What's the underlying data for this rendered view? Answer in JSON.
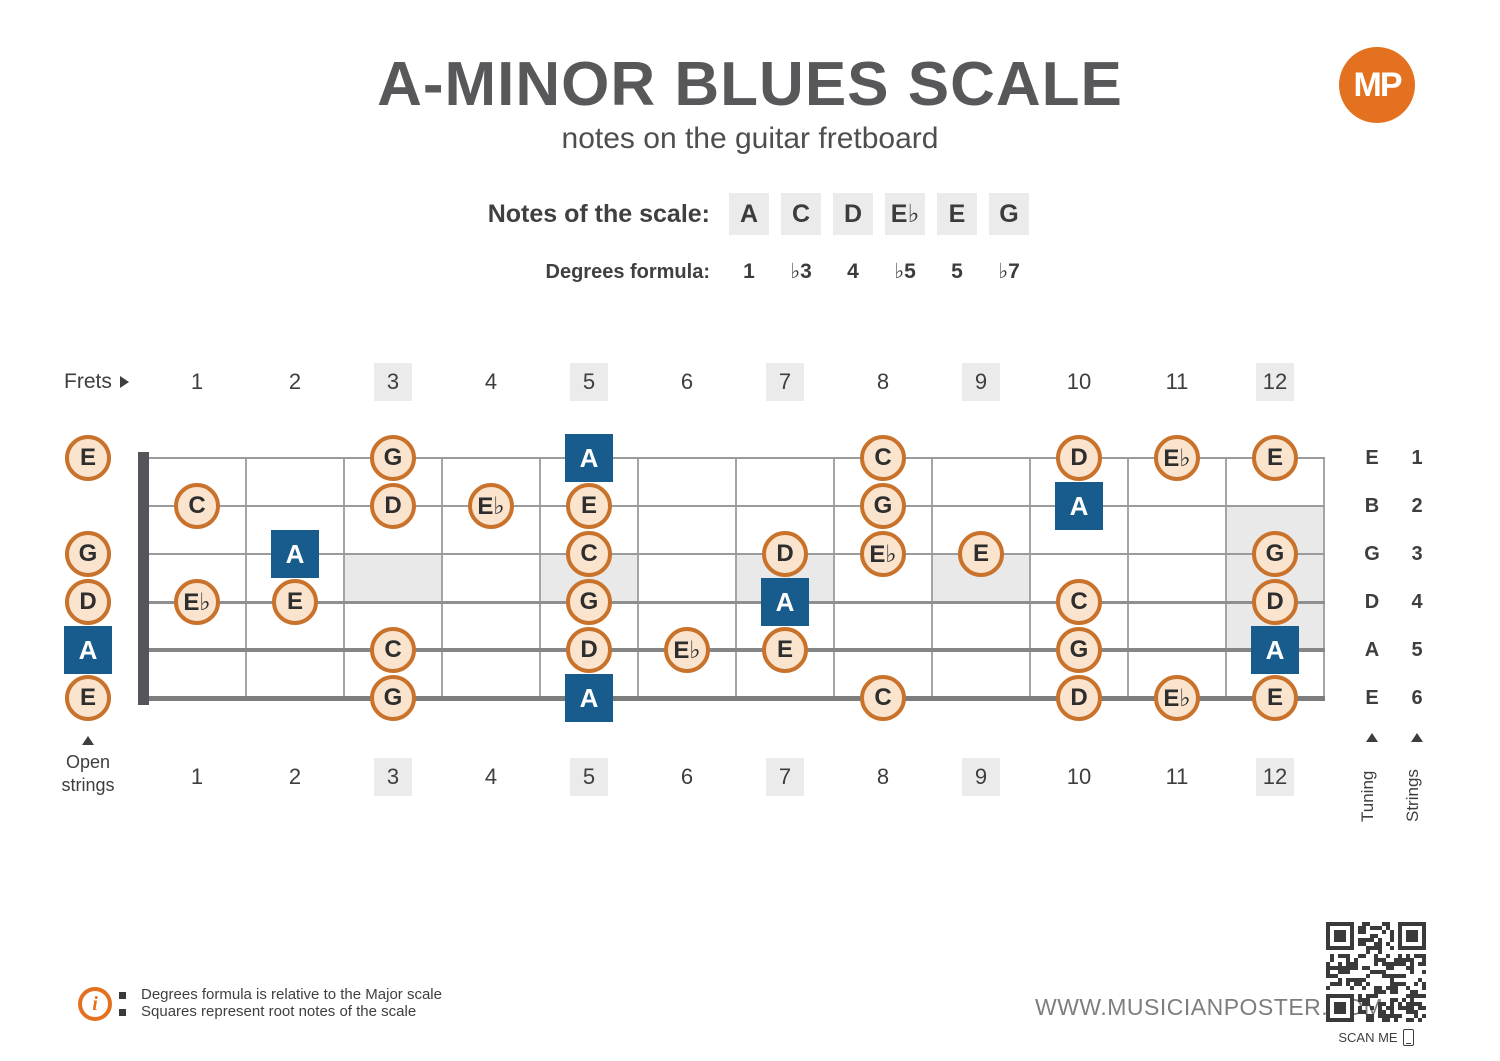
{
  "header": {
    "title": "A-MINOR BLUES SCALE",
    "subtitle": "notes on the guitar fretboard",
    "logo_text": "MP"
  },
  "scale": {
    "notes_label": "Notes of the scale:",
    "notes": [
      "A",
      "C",
      "D",
      "E♭",
      "E",
      "G"
    ],
    "degrees_label": "Degrees formula:",
    "degrees": [
      "1",
      "♭3",
      "4",
      "♭5",
      "5",
      "♭7"
    ]
  },
  "fretboard": {
    "frets_label": "Frets",
    "fret_numbers": [
      "1",
      "2",
      "3",
      "4",
      "5",
      "6",
      "7",
      "8",
      "9",
      "10",
      "11",
      "12"
    ],
    "marked_frets": [
      3,
      5,
      7,
      9,
      12
    ],
    "single_marker_frets": [
      3,
      5,
      7,
      9
    ],
    "double_marker_fret": 12,
    "open_strings_label": "Open strings",
    "tuning_label": "Tuning",
    "strings_label": "Strings",
    "strings": [
      {
        "number": "1",
        "tuning": "E"
      },
      {
        "number": "2",
        "tuning": "B"
      },
      {
        "number": "3",
        "tuning": "G"
      },
      {
        "number": "4",
        "tuning": "D"
      },
      {
        "number": "5",
        "tuning": "A"
      },
      {
        "number": "6",
        "tuning": "E"
      }
    ],
    "notes": [
      {
        "string": 1,
        "fret": 0,
        "note": "E",
        "root": false
      },
      {
        "string": 1,
        "fret": 3,
        "note": "G",
        "root": false
      },
      {
        "string": 1,
        "fret": 5,
        "note": "A",
        "root": true
      },
      {
        "string": 1,
        "fret": 8,
        "note": "C",
        "root": false
      },
      {
        "string": 1,
        "fret": 10,
        "note": "D",
        "root": false
      },
      {
        "string": 1,
        "fret": 11,
        "note": "E♭",
        "root": false
      },
      {
        "string": 1,
        "fret": 12,
        "note": "E",
        "root": false
      },
      {
        "string": 2,
        "fret": 1,
        "note": "C",
        "root": false
      },
      {
        "string": 2,
        "fret": 3,
        "note": "D",
        "root": false
      },
      {
        "string": 2,
        "fret": 4,
        "note": "E♭",
        "root": false
      },
      {
        "string": 2,
        "fret": 5,
        "note": "E",
        "root": false
      },
      {
        "string": 2,
        "fret": 8,
        "note": "G",
        "root": false
      },
      {
        "string": 2,
        "fret": 10,
        "note": "A",
        "root": true
      },
      {
        "string": 3,
        "fret": 0,
        "note": "G",
        "root": false
      },
      {
        "string": 3,
        "fret": 2,
        "note": "A",
        "root": true
      },
      {
        "string": 3,
        "fret": 5,
        "note": "C",
        "root": false
      },
      {
        "string": 3,
        "fret": 7,
        "note": "D",
        "root": false
      },
      {
        "string": 3,
        "fret": 8,
        "note": "E♭",
        "root": false
      },
      {
        "string": 3,
        "fret": 9,
        "note": "E",
        "root": false
      },
      {
        "string": 3,
        "fret": 12,
        "note": "G",
        "root": false
      },
      {
        "string": 4,
        "fret": 0,
        "note": "D",
        "root": false
      },
      {
        "string": 4,
        "fret": 1,
        "note": "E♭",
        "root": false
      },
      {
        "string": 4,
        "fret": 2,
        "note": "E",
        "root": false
      },
      {
        "string": 4,
        "fret": 5,
        "note": "G",
        "root": false
      },
      {
        "string": 4,
        "fret": 7,
        "note": "A",
        "root": true
      },
      {
        "string": 4,
        "fret": 10,
        "note": "C",
        "root": false
      },
      {
        "string": 4,
        "fret": 12,
        "note": "D",
        "root": false
      },
      {
        "string": 5,
        "fret": 0,
        "note": "A",
        "root": true
      },
      {
        "string": 5,
        "fret": 3,
        "note": "C",
        "root": false
      },
      {
        "string": 5,
        "fret": 5,
        "note": "D",
        "root": false
      },
      {
        "string": 5,
        "fret": 6,
        "note": "E♭",
        "root": false
      },
      {
        "string": 5,
        "fret": 7,
        "note": "E",
        "root": false
      },
      {
        "string": 5,
        "fret": 10,
        "note": "G",
        "root": false
      },
      {
        "string": 5,
        "fret": 12,
        "note": "A",
        "root": true
      },
      {
        "string": 6,
        "fret": 0,
        "note": "E",
        "root": false
      },
      {
        "string": 6,
        "fret": 3,
        "note": "G",
        "root": false
      },
      {
        "string": 6,
        "fret": 5,
        "note": "A",
        "root": true
      },
      {
        "string": 6,
        "fret": 8,
        "note": "C",
        "root": false
      },
      {
        "string": 6,
        "fret": 10,
        "note": "D",
        "root": false
      },
      {
        "string": 6,
        "fret": 11,
        "note": "E♭",
        "root": false
      },
      {
        "string": 6,
        "fret": 12,
        "note": "E",
        "root": false
      }
    ]
  },
  "footer": {
    "bullets": [
      "Degrees formula is relative to the Major scale",
      "Squares represent root notes of the scale"
    ],
    "website": "WWW.MUSICIANPOSTER.COM",
    "scan_label": "SCAN ME"
  },
  "colors": {
    "accent_orange": "#E4711F",
    "note_border_orange": "#C9722B",
    "note_fill": "#FAE4CE",
    "root_blue": "#175C8D",
    "inlay_gray": "#E9E9E9",
    "box_gray": "#EBEBEB",
    "ink": "#3E3E40",
    "title_gray": "#58585B",
    "website_gray": "#7E7E7E"
  }
}
